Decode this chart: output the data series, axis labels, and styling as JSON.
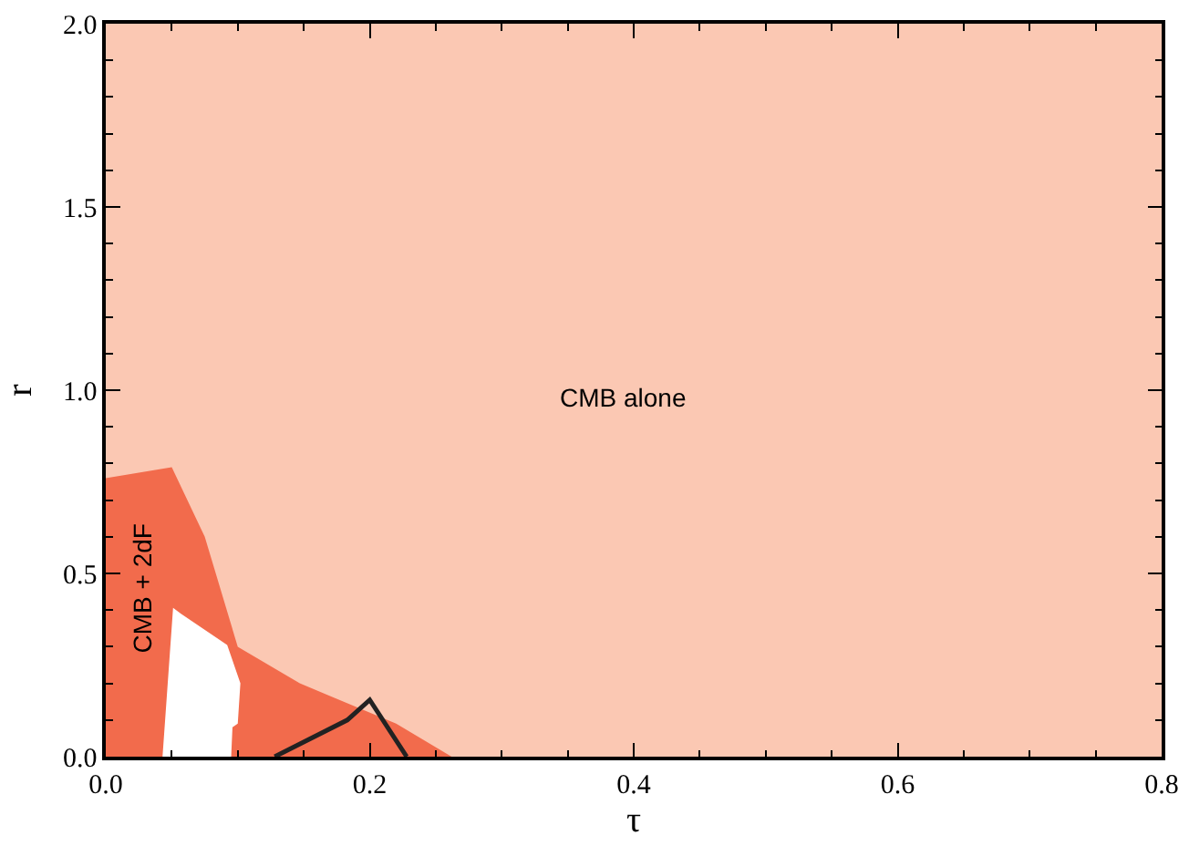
{
  "chart_data": {
    "type": "area",
    "xlabel": "τ",
    "ylabel": "r",
    "xlim": [
      0,
      0.8
    ],
    "xticks": [
      {
        "value": 0,
        "label": "0.0"
      },
      0.2,
      0.4,
      0.6,
      0.8
    ],
    "ylim": [
      0,
      2.0
    ],
    "yticks": [
      {
        "value": 0,
        "label": "0.0"
      },
      0.5,
      {
        "value": 1,
        "label": "1.0"
      },
      1.5,
      {
        "value": 2,
        "label": "2.0"
      }
    ],
    "series": [
      {
        "color": "#fbc8b3",
        "x": [
          0,
          0.8
        ],
        "values": [
          2.0,
          2.0
        ]
      },
      {
        "color": "#f26b4c",
        "x": [
          0,
          0.05,
          0.075,
          0.1,
          0.147,
          0.22,
          0.262
        ],
        "values": [
          0.76,
          0.79,
          0.6,
          0.3,
          0.2,
          0.09,
          0
        ]
      },
      {
        "color": "#ffffff",
        "x": [
          0.043,
          0.051,
          0.057,
          0.092,
          0.102,
          0.1,
          0.096,
          0.095
        ],
        "values": [
          0,
          0.406,
          0.39,
          0.305,
          0.2,
          0.09,
          0.08,
          0
        ]
      },
      {
        "type": "line",
        "color": "#222222",
        "x": [
          0.128,
          0.183,
          0.2,
          0.228
        ],
        "values": [
          0,
          0.1,
          0.155,
          0
        ]
      }
    ],
    "annotations": [
      "CMB alone",
      "CMB + 2dF"
    ]
  }
}
